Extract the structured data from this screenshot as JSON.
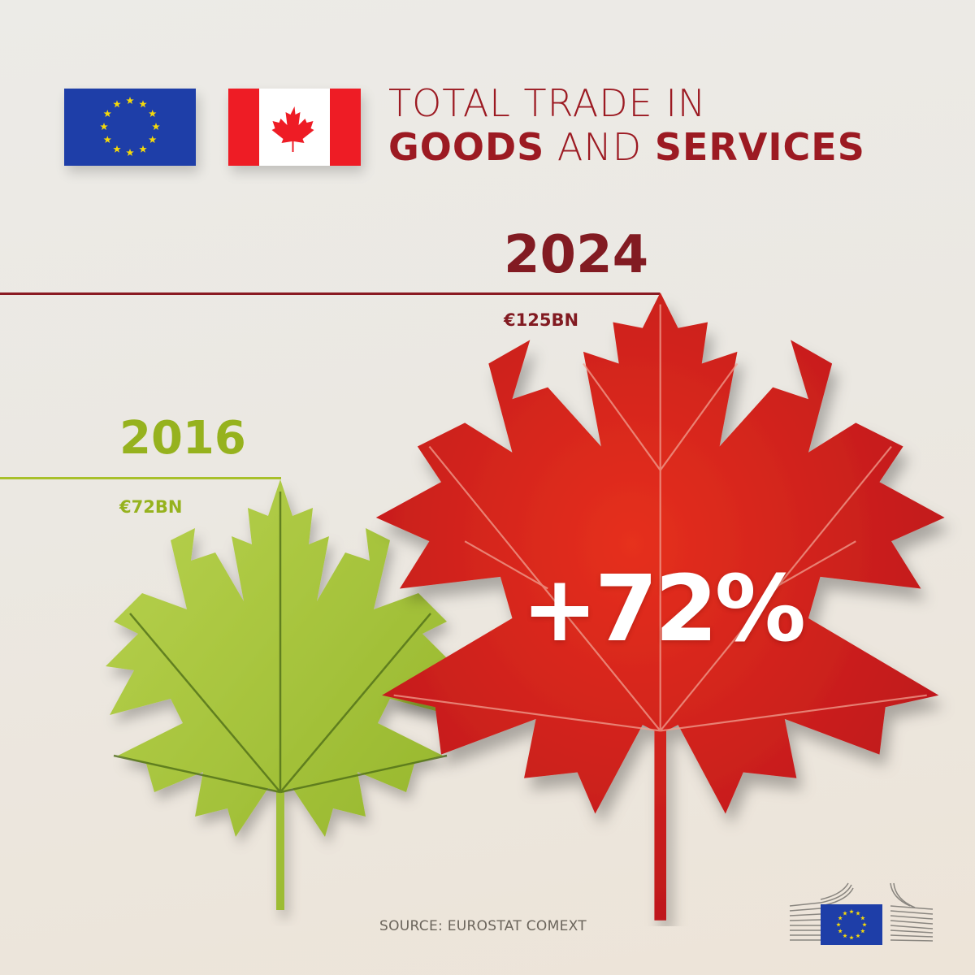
{
  "header": {
    "title_line1": "TOTAL TRADE IN",
    "title_line2_bold1": "GOODS",
    "title_line2_regular": " AND ",
    "title_line2_bold2": "SERVICES",
    "flags": [
      "eu-flag-icon",
      "canada-flag-icon"
    ]
  },
  "years": {
    "recent": {
      "year": "2024",
      "value": "€125BN",
      "color": "#821b22"
    },
    "base": {
      "year": "2016",
      "value": "€72BN",
      "color": "#96b21e"
    }
  },
  "growth_label": "+72%",
  "footer": {
    "source": "SOURCE: EUROSTAT COMEXT",
    "logo": "european-commission-logo"
  },
  "colors": {
    "title": "#9c1a22",
    "red_leaf": "#d8251c",
    "green_leaf": "#a4c23a",
    "eu_blue": "#1e3ea8",
    "eu_star": "#f5d90a",
    "canada_red": "#ee1c25"
  },
  "chart_data": {
    "type": "bar",
    "title": "Total trade in goods and services (EU–Canada)",
    "categories": [
      "2016",
      "2024"
    ],
    "values": [
      72,
      125
    ],
    "unit": "€ billion",
    "value_labels": [
      "€72BN",
      "€125BN"
    ],
    "annotation": "+72%",
    "source": "SOURCE: EUROSTAT COMEXT",
    "xlabel": "",
    "ylabel": "",
    "grid": false
  }
}
